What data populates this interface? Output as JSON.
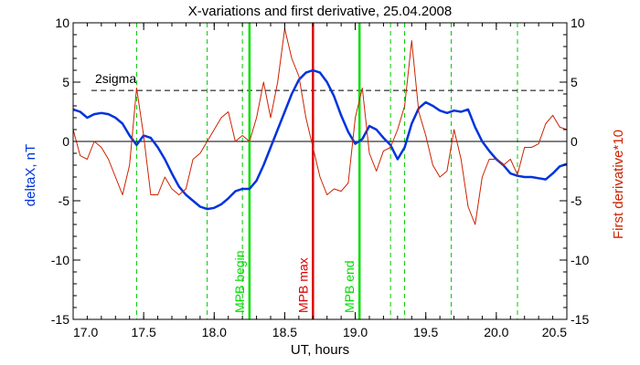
{
  "chart_data": {
    "type": "line",
    "title": "X-variations and first derivative, 25.04.2008",
    "xlabel": "UT, hours",
    "ylabel_left": "deltaX, nT",
    "ylabel_right": "First derivative*10",
    "xlim": [
      17.0,
      20.5
    ],
    "ylim_left": [
      -15,
      10
    ],
    "ylim_right": [
      -15,
      10
    ],
    "x_ticks": [
      "17.0",
      "17.5",
      "18.0",
      "18.5",
      "19.0",
      "19.5",
      "20.0",
      "20.5"
    ],
    "y_ticks_left": [
      "10",
      "5",
      "0",
      "-5",
      "-10",
      "-15"
    ],
    "y_ticks_right": [
      "10",
      "5",
      "0",
      "-5",
      "-10",
      "-15"
    ],
    "zero_line": 0,
    "sigma_line": {
      "value": 4.3,
      "label": "2sigma"
    },
    "markers": [
      {
        "x": 18.25,
        "label": "MPB begin",
        "color": "#00dd00"
      },
      {
        "x": 18.7,
        "label": "MPB max",
        "color": "#dd0000"
      },
      {
        "x": 19.03,
        "label": "MPB end",
        "color": "#00dd00"
      }
    ],
    "dashed_verticals": [
      17.45,
      17.95,
      18.2,
      19.25,
      19.35,
      19.68,
      20.15
    ],
    "series": [
      {
        "axis": "left",
        "color": "#0033dd",
        "x": [
          17.0,
          17.05,
          17.1,
          17.15,
          17.2,
          17.25,
          17.3,
          17.35,
          17.4,
          17.45,
          17.5,
          17.55,
          17.6,
          17.65,
          17.7,
          17.75,
          17.8,
          17.85,
          17.9,
          17.95,
          18.0,
          18.05,
          18.1,
          18.15,
          18.2,
          18.25,
          18.3,
          18.35,
          18.4,
          18.45,
          18.5,
          18.55,
          18.6,
          18.65,
          18.7,
          18.75,
          18.8,
          18.85,
          18.9,
          18.95,
          19.0,
          19.05,
          19.1,
          19.15,
          19.2,
          19.25,
          19.3,
          19.35,
          19.4,
          19.45,
          19.5,
          19.55,
          19.6,
          19.65,
          19.7,
          19.75,
          19.8,
          19.85,
          19.9,
          19.95,
          20.0,
          20.05,
          20.1,
          20.15,
          20.2,
          20.25,
          20.3,
          20.35,
          20.4,
          20.45,
          20.5
        ],
        "values": [
          2.7,
          2.5,
          2.0,
          2.3,
          2.4,
          2.3,
          2.0,
          1.5,
          0.5,
          -0.3,
          0.5,
          0.3,
          -0.5,
          -1.5,
          -2.7,
          -3.8,
          -4.5,
          -5.0,
          -5.5,
          -5.7,
          -5.6,
          -5.3,
          -4.8,
          -4.2,
          -4.0,
          -4.0,
          -3.3,
          -2.0,
          -0.5,
          1.0,
          2.5,
          4.0,
          5.2,
          5.8,
          6.0,
          5.8,
          5.0,
          3.8,
          2.2,
          0.8,
          -0.2,
          0.2,
          1.3,
          1.0,
          0.3,
          -0.3,
          -1.5,
          -0.5,
          1.5,
          2.8,
          3.3,
          3.0,
          2.6,
          2.4,
          2.6,
          2.5,
          2.7,
          1.2,
          0.0,
          -0.8,
          -1.5,
          -2.0,
          -2.7,
          -2.9,
          -3.0,
          -3.0,
          -3.1,
          -3.2,
          -2.7,
          -2.1,
          -1.9
        ]
      },
      {
        "axis": "right",
        "color": "#cc2200",
        "x": [
          17.0,
          17.05,
          17.1,
          17.15,
          17.2,
          17.25,
          17.3,
          17.35,
          17.4,
          17.45,
          17.5,
          17.55,
          17.6,
          17.65,
          17.7,
          17.75,
          17.8,
          17.85,
          17.9,
          17.95,
          18.0,
          18.05,
          18.1,
          18.15,
          18.2,
          18.25,
          18.3,
          18.35,
          18.4,
          18.45,
          18.5,
          18.55,
          18.6,
          18.65,
          18.7,
          18.75,
          18.8,
          18.85,
          18.9,
          18.95,
          19.0,
          19.05,
          19.1,
          19.15,
          19.2,
          19.25,
          19.3,
          19.35,
          19.4,
          19.45,
          19.5,
          19.55,
          19.6,
          19.65,
          19.7,
          19.75,
          19.8,
          19.85,
          19.9,
          19.95,
          20.0,
          20.05,
          20.1,
          20.15,
          20.2,
          20.25,
          20.3,
          20.35,
          20.4,
          20.45,
          20.5
        ],
        "values": [
          1.0,
          -1.2,
          -1.5,
          0.0,
          -0.5,
          -1.5,
          -3.0,
          -4.5,
          -2.0,
          4.5,
          0.5,
          -4.5,
          -4.5,
          -3.0,
          -4.0,
          -4.5,
          -4.0,
          -1.5,
          -1.0,
          0.0,
          1.0,
          2.0,
          2.5,
          0.0,
          0.5,
          0.0,
          2.0,
          5.0,
          2.0,
          5.0,
          9.5,
          7.0,
          5.5,
          2.0,
          -0.5,
          -3.0,
          -4.5,
          -4.0,
          -4.2,
          -3.5,
          2.0,
          4.5,
          -1.0,
          -2.5,
          -0.8,
          -0.5,
          1.0,
          3.0,
          8.5,
          2.5,
          0.5,
          -2.0,
          -3.0,
          -2.5,
          1.0,
          -1.5,
          -5.5,
          -7.0,
          -3.0,
          -1.5,
          -1.5,
          -2.0,
          -1.5,
          -2.8,
          -0.5,
          -0.5,
          -0.2,
          1.5,
          2.2,
          1.2,
          1.0
        ]
      }
    ]
  }
}
